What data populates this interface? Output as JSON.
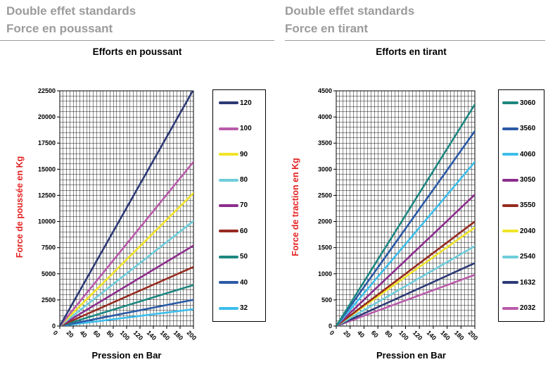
{
  "panels": [
    {
      "header_line1": "Double effet standards",
      "header_line2": "Force en poussant",
      "chart_title": "Efforts en poussant"
    },
    {
      "header_line1": "Double effet standards",
      "header_line2": "Force en tirant",
      "chart_title": "Efforts en tirant"
    }
  ],
  "styles": {
    "header_text_color": "#9b9b9b",
    "axis_title_red": "#e32222",
    "grid_color": "#000000",
    "plot_background": "#ffffff"
  },
  "chart_data": [
    {
      "type": "line",
      "title": "Efforts en poussant",
      "xlabel": "Pression en Bar",
      "ylabel": "Force de poussée en Kg",
      "xlim": [
        0,
        200
      ],
      "ylim": [
        0,
        22500
      ],
      "x_ticks": [
        0,
        20,
        40,
        60,
        80,
        100,
        120,
        140,
        160,
        180,
        200
      ],
      "y_ticks": [
        0,
        2500,
        5000,
        7500,
        10000,
        12500,
        15000,
        17500,
        20000,
        22500
      ],
      "x_minor_step": 5,
      "y_minor_step": 500,
      "grid": true,
      "legend_position": "right",
      "x": [
        0,
        200
      ],
      "series": [
        {
          "name": "120",
          "color": "#2d3a76",
          "values": [
            0,
            22620
          ]
        },
        {
          "name": "100",
          "color": "#b95aaa",
          "values": [
            0,
            15710
          ]
        },
        {
          "name": "90",
          "color": "#f0e428",
          "values": [
            0,
            12720
          ]
        },
        {
          "name": "80",
          "color": "#6ecddb",
          "values": [
            0,
            10050
          ]
        },
        {
          "name": "70",
          "color": "#8c2d8c",
          "values": [
            0,
            7700
          ]
        },
        {
          "name": "60",
          "color": "#962a20",
          "values": [
            0,
            5655
          ]
        },
        {
          "name": "50",
          "color": "#1e8780",
          "values": [
            0,
            3925
          ]
        },
        {
          "name": "40",
          "color": "#2b5aa6",
          "values": [
            0,
            2515
          ]
        },
        {
          "name": "32",
          "color": "#3cbeeb",
          "values": [
            0,
            1610
          ]
        }
      ]
    },
    {
      "type": "line",
      "title": "Efforts en tirant",
      "xlabel": "Pression en Bar",
      "ylabel": "Force de traction en Kg",
      "xlim": [
        0,
        200
      ],
      "ylim": [
        0,
        4500
      ],
      "x_ticks": [
        0,
        20,
        40,
        60,
        80,
        100,
        120,
        140,
        160,
        180,
        200
      ],
      "y_ticks": [
        0,
        500,
        1000,
        1500,
        2000,
        2500,
        3000,
        3500,
        4000,
        4500
      ],
      "x_minor_step": 5,
      "y_minor_step": 100,
      "grid": true,
      "legend_position": "right",
      "x": [
        0,
        200
      ],
      "series": [
        {
          "name": "3060",
          "color": "#1e8780",
          "values": [
            0,
            4240
          ]
        },
        {
          "name": "3560",
          "color": "#2b5aa6",
          "values": [
            0,
            3730
          ]
        },
        {
          "name": "4060",
          "color": "#3cbeeb",
          "values": [
            0,
            3140
          ]
        },
        {
          "name": "3050",
          "color": "#8c2d8c",
          "values": [
            0,
            2515
          ]
        },
        {
          "name": "3550",
          "color": "#962a20",
          "values": [
            0,
            2000
          ]
        },
        {
          "name": "2040",
          "color": "#f0e428",
          "values": [
            0,
            1885
          ]
        },
        {
          "name": "2540",
          "color": "#6ecddb",
          "values": [
            0,
            1530
          ]
        },
        {
          "name": "1632",
          "color": "#2d3a76",
          "values": [
            0,
            1205
          ]
        },
        {
          "name": "2032",
          "color": "#b95aaa",
          "values": [
            0,
            980
          ]
        }
      ]
    }
  ]
}
